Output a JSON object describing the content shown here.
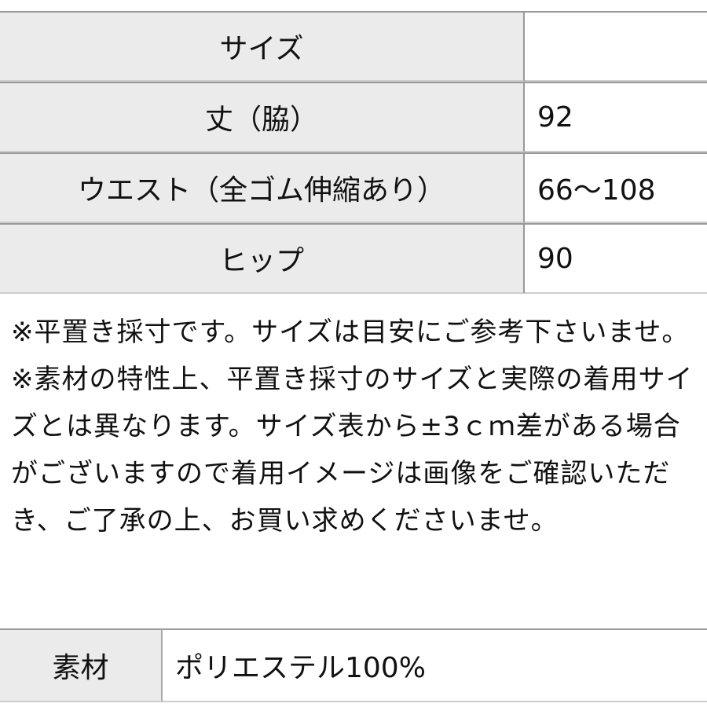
{
  "size_table": {
    "rows": [
      {
        "label": "サイズ",
        "value": ""
      },
      {
        "label": "丈（脇）",
        "value": "92"
      },
      {
        "label": "ウエスト（全ゴム伸縮あり）",
        "value": "66〜108"
      },
      {
        "label": "ヒップ",
        "value": "90"
      }
    ]
  },
  "notes": [
    "※平置き採寸です。サイズは目安にご参考下さいませ。",
    "※素材の特性上、平置き採寸のサイズと実際の着用サイズとは異なります。サイズ表から±3ｃｍ差がある場合がございますので着用イメージは画像をご確認いただき、ご了承の上、お買い求めくださいませ。"
  ],
  "material_table": {
    "label": "素材",
    "value": "ポリエステル100%"
  }
}
